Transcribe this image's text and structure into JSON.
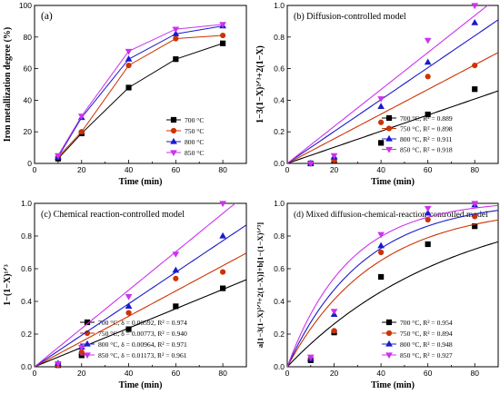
{
  "figure": {
    "colors": {
      "700": "#000000",
      "750": "#cc3300",
      "800": "#1a1acc",
      "850": "#cc33ee"
    },
    "markers": {
      "700": "square",
      "750": "circle",
      "800": "triangle-up",
      "850": "triangle-down"
    }
  },
  "chart_data": [
    {
      "id": "a",
      "type": "line",
      "title": "(a)",
      "xlabel": "Time (min)",
      "ylabel": "Iron metallization degree (%)",
      "xlim": [
        0,
        90
      ],
      "ylim": [
        0,
        100
      ],
      "xticks": [
        0,
        20,
        40,
        60,
        80
      ],
      "yticks": [
        0,
        20,
        40,
        60,
        80,
        100
      ],
      "x": [
        10,
        20,
        40,
        60,
        80
      ],
      "legend_placement": "bottom-right",
      "series": [
        {
          "key": "700",
          "name": "700 °C",
          "values": [
            3,
            19,
            48,
            66,
            76
          ]
        },
        {
          "key": "750",
          "name": "750 °C",
          "values": [
            4,
            20,
            62,
            79,
            81
          ]
        },
        {
          "key": "800",
          "name": "800 °C",
          "values": [
            4,
            29,
            66,
            82,
            87
          ]
        },
        {
          "key": "850",
          "name": "850 °C",
          "values": [
            5,
            30,
            71,
            85,
            88
          ]
        }
      ]
    },
    {
      "id": "b",
      "type": "scatter",
      "title": "(b) Diffusion-controlled model",
      "xlabel": "Time (min)",
      "ylabel": "1−3(1−X)²ᐟ³+2(1−X)",
      "xlim": [
        0,
        90
      ],
      "ylim": [
        0,
        1.0
      ],
      "xticks": [
        0,
        20,
        40,
        60,
        80
      ],
      "yticks": [
        0.0,
        0.2,
        0.4,
        0.6,
        0.8,
        1.0
      ],
      "x": [
        10,
        20,
        40,
        60,
        80
      ],
      "legend_placement": "bottom-right",
      "series": [
        {
          "key": "700",
          "name": "700 °C, R² = 0.889",
          "values": [
            0.0,
            0.02,
            0.13,
            0.31,
            0.47
          ],
          "fit_slope": 0.0051
        },
        {
          "key": "750",
          "name": "750 °C, R² = 0.898",
          "values": [
            0.0,
            0.02,
            0.26,
            0.55,
            0.62
          ],
          "fit_slope": 0.0078
        },
        {
          "key": "800",
          "name": "800 °C, R² = 0.911",
          "values": [
            0.0,
            0.04,
            0.36,
            0.64,
            0.89
          ],
          "fit_slope": 0.0101
        },
        {
          "key": "850",
          "name": "850 °C, R² = 0.918",
          "values": [
            0.0,
            0.05,
            0.41,
            0.78,
            1.0
          ],
          "fit_slope": 0.0117
        }
      ]
    },
    {
      "id": "c",
      "type": "scatter",
      "title": "(c) Chemical reaction-controlled model",
      "xlabel": "Time (min)",
      "ylabel": "1−(1−X)¹ᐟ³",
      "xlim": [
        0,
        90
      ],
      "ylim": [
        0,
        1.0
      ],
      "xticks": [
        0,
        20,
        40,
        60,
        80
      ],
      "yticks": [
        0.0,
        0.2,
        0.4,
        0.6,
        0.8,
        1.0
      ],
      "x": [
        10,
        20,
        40,
        60,
        80
      ],
      "legend_placement": "bottom-right",
      "series": [
        {
          "key": "700",
          "name": "700 °C, δ = 0.00592, R² = 0.974",
          "values": [
            0.01,
            0.07,
            0.23,
            0.37,
            0.48
          ],
          "fit_slope": 0.00592
        },
        {
          "key": "750",
          "name": "750 °C, δ = 0.00773, R² = 0.940",
          "values": [
            0.01,
            0.09,
            0.33,
            0.54,
            0.58
          ],
          "fit_slope": 0.00773
        },
        {
          "key": "800",
          "name": "800 °C, δ = 0.00964, R² = 0.971",
          "values": [
            0.02,
            0.12,
            0.37,
            0.59,
            0.8
          ],
          "fit_slope": 0.00964
        },
        {
          "key": "850",
          "name": "850 °C, δ = 0.01173, R² = 0.961",
          "values": [
            0.02,
            0.12,
            0.43,
            0.69,
            1.0
          ],
          "fit_slope": 0.01173
        }
      ]
    },
    {
      "id": "d",
      "type": "scatter",
      "title": "(d) Mixed diffusion-chemical-reaction-controlled model",
      "xlabel": "Time (min)",
      "ylabel": "a[1−3(1−X)²ᐟ³+2(1−X)]+b[1−(1−X)¹ᐟ³]",
      "xlim": [
        0,
        90
      ],
      "ylim": [
        0,
        1.0
      ],
      "xticks": [
        0,
        20,
        40,
        60,
        80
      ],
      "yticks": [
        0.0,
        0.2,
        0.4,
        0.6,
        0.8,
        1.0
      ],
      "x": [
        10,
        20,
        40,
        60,
        80
      ],
      "legend_placement": "bottom-right",
      "series": [
        {
          "key": "700",
          "name": "700 °C, R² = 0.954",
          "values": [
            0.04,
            0.21,
            0.55,
            0.75,
            0.86
          ],
          "fit_rate": 0.0142,
          "fit_max": 1.06
        },
        {
          "key": "750",
          "name": "750 °C, R² = 0.894",
          "values": [
            0.05,
            0.22,
            0.7,
            0.9,
            0.92
          ],
          "fit_rate": 0.027,
          "fit_max": 0.985
        },
        {
          "key": "800",
          "name": "800 °C, R² = 0.948",
          "values": [
            0.05,
            0.32,
            0.74,
            0.94,
            0.99
          ],
          "fit_rate": 0.031,
          "fit_max": 1.02
        },
        {
          "key": "850",
          "name": "850 °C, R² = 0.927",
          "values": [
            0.06,
            0.34,
            0.81,
            0.97,
            1.0
          ],
          "fit_rate": 0.038,
          "fit_max": 1.02
        }
      ]
    }
  ]
}
